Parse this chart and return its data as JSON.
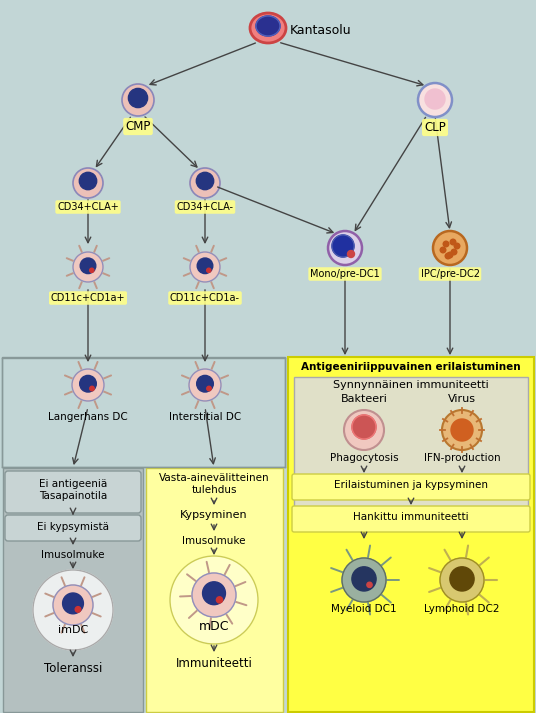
{
  "bg_color": "#c2d6d6",
  "yellow_bright": "#ffff00",
  "yellow_pale": "#ffffc0",
  "gray_section": "#b8c8c8",
  "gray_box": "#c0cccc",
  "gray_box2": "#b8c4c4",
  "white": "#ffffff",
  "cell_outer_pink": "#f0c8c0",
  "cell_outer_light": "#f5ddd8",
  "cell_blue_dark": "#253580",
  "cell_blue_mid": "#3a5090",
  "cell_outline_blue": "#8090c0",
  "cell_outline_purple": "#9060a0",
  "cell_outline_orange": "#c07030",
  "spike_color": "#c09888",
  "spike_color2": "#c0a850",
  "arrow_color": "#555555",
  "kantasolu_label": "Kantasolu",
  "cmp_label": "CMP",
  "clp_label": "CLP",
  "cd34p_label": "CD34+CLA+",
  "cd34m_label": "CD34+CLA-",
  "cd11p_label": "CD11c+CD1a+",
  "cd11m_label": "CD11c+CD1a-",
  "mono_label": "Mono/pre-DC1",
  "ipc_label": "IPC/pre-DC2",
  "lang_label": "Langerhans DC",
  "inter_label": "Interstitial DC",
  "antigeeni_label": "Antigeeniriippuvainen erilaistuminen",
  "synnyn_label": "Synnynnäinen immuniteetti",
  "bakteeri_label": "Bakteeri",
  "virus_label": "Virus",
  "phago_label": "Phagocytosis",
  "ifn_label": "IFN-production",
  "erial_label": "Erilaistuminen ja kypsyminen",
  "hankittu_label": "Hankittu immuniteetti",
  "myeloid_label": "Myeloid DC1",
  "lymphoid_label": "Lymphoid DC2",
  "ei_antigen_label": "Ei antigeeniä\nTasapainotila",
  "ei_kyps_label": "Ei kypsymistä",
  "imusol1_label": "Imusolmuke",
  "imdc_label": "imDC",
  "toleranssi_label": "Toleranssi",
  "vasta_label": "Vasta-ainevälitteinen\ntulehdus",
  "kypsyminen_label": "Kypsyminen",
  "imusol2_label": "Imusolmuke",
  "mdc_label": "mDC",
  "immuniteetti_label": "Immuniteetti"
}
